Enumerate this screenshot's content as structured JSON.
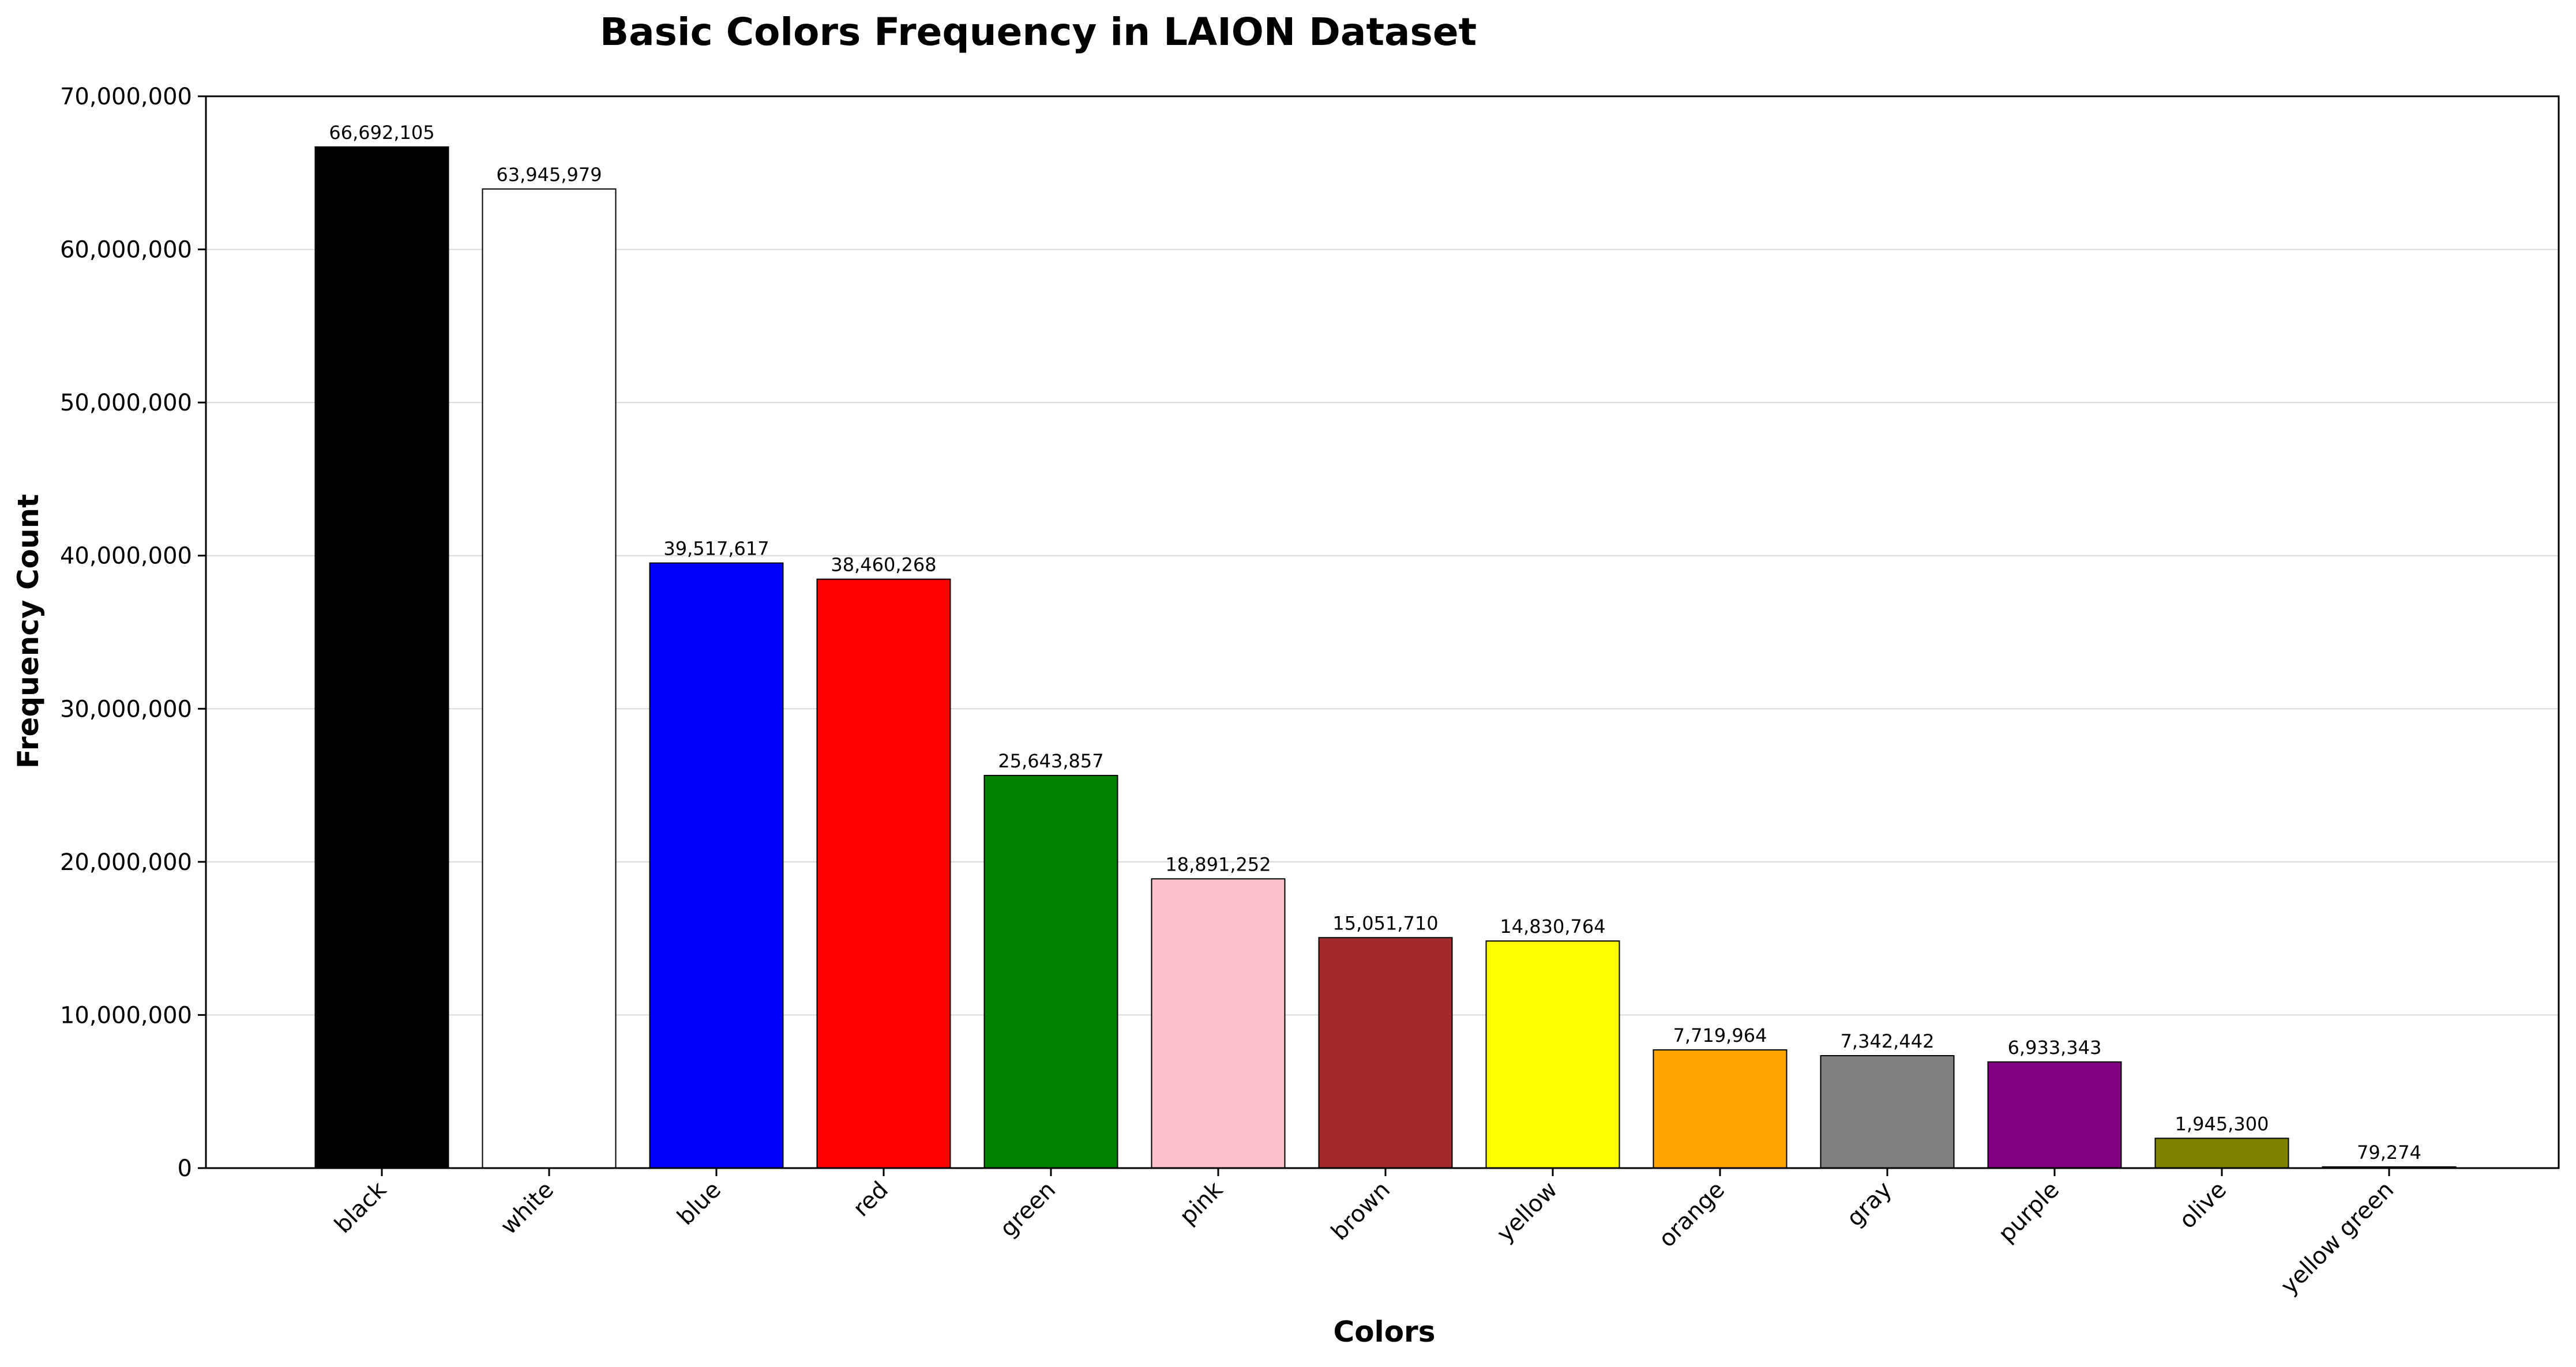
{
  "chart_data": {
    "type": "bar",
    "title": "Basic Colors Frequency in LAION Dataset",
    "xlabel": "Colors",
    "ylabel": "Frequency Count",
    "ylim": [
      0,
      70000000
    ],
    "yticks": [
      0,
      10000000,
      20000000,
      30000000,
      40000000,
      50000000,
      60000000,
      70000000
    ],
    "ytick_labels": [
      "0",
      "10,000,000",
      "20,000,000",
      "30,000,000",
      "40,000,000",
      "50,000,000",
      "60,000,000",
      "70,000,000"
    ],
    "grid": "horizontal",
    "legend": "none",
    "categories": [
      "black",
      "white",
      "blue",
      "red",
      "green",
      "pink",
      "brown",
      "yellow",
      "orange",
      "gray",
      "purple",
      "olive",
      "yellow green"
    ],
    "values": [
      66692105,
      63945979,
      39517617,
      38460268,
      25643857,
      18891252,
      15051710,
      14830764,
      7719964,
      7342442,
      6933343,
      1945300,
      79274
    ],
    "value_labels": [
      "66,692,105",
      "63,945,979",
      "39,517,617",
      "38,460,268",
      "25,643,857",
      "18,891,252",
      "15,051,710",
      "14,830,764",
      "7,719,964",
      "7,342,442",
      "6,933,343",
      "1,945,300",
      "79,274"
    ],
    "bar_colors": [
      "#000000",
      "#ffffff",
      "#0000ff",
      "#ff0000",
      "#008000",
      "#ffc0cb",
      "#a52a2a",
      "#ffff00",
      "#ffa500",
      "#808080",
      "#800080",
      "#808000",
      "#9acd32"
    ]
  }
}
